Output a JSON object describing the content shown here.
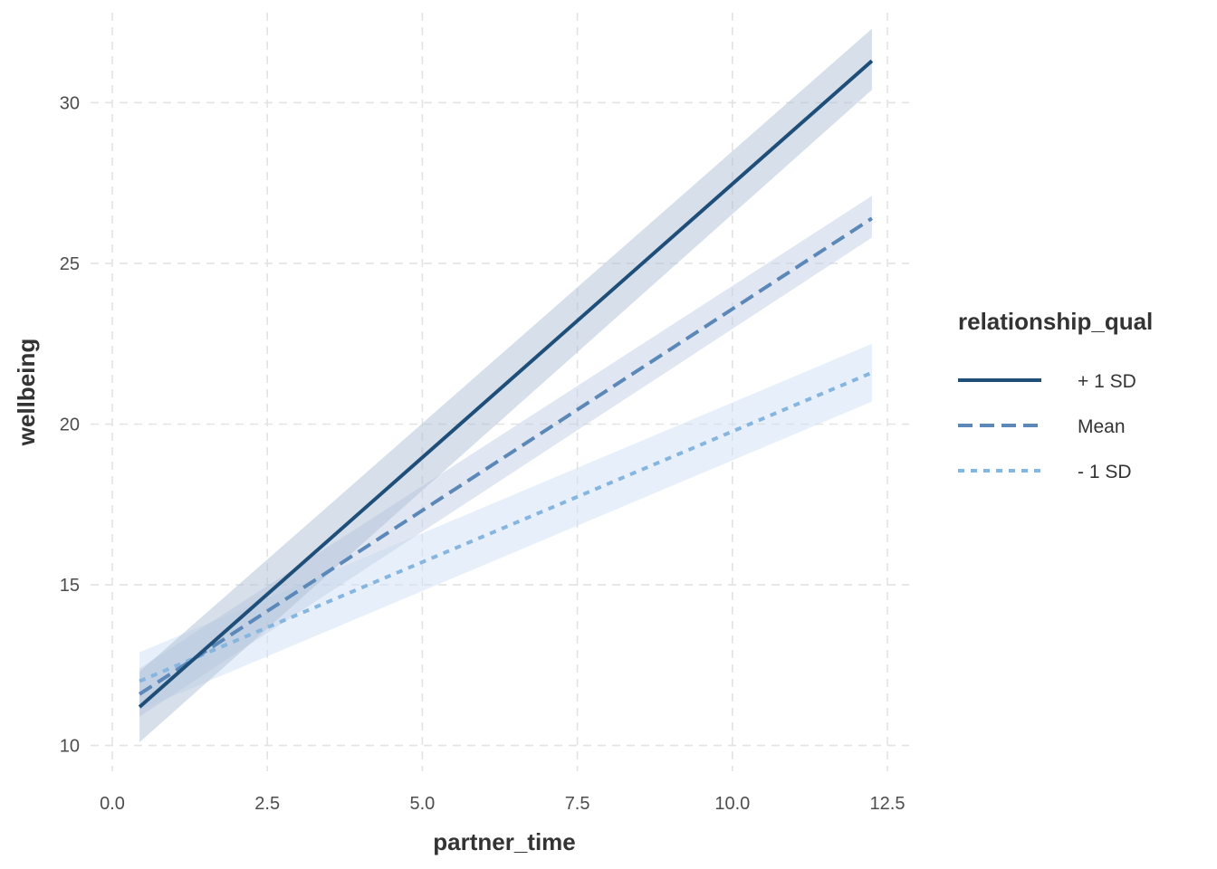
{
  "chart_data": {
    "type": "line",
    "xlabel": "partner_time",
    "ylabel": "wellbeing",
    "xlim": [
      -0.35,
      12.85
    ],
    "ylim": [
      9.2,
      32.8
    ],
    "x_ticks": [
      0.0,
      2.5,
      5.0,
      7.5,
      10.0,
      12.5
    ],
    "x_tick_labels": [
      "0.0",
      "2.5",
      "5.0",
      "7.5",
      "10.0",
      "12.5"
    ],
    "y_ticks": [
      10,
      15,
      20,
      25,
      30
    ],
    "y_tick_labels": [
      "10",
      "15",
      "20",
      "25",
      "30"
    ],
    "grid": true,
    "legend": {
      "title": "relationship_qual",
      "position": "right"
    },
    "series": [
      {
        "name": "+ 1 SD",
        "x": [
          0.44,
          12.25
        ],
        "y": [
          11.2,
          31.3
        ],
        "ci_lower": [
          10.1,
          30.4
        ],
        "ci_upper": [
          12.3,
          32.3
        ],
        "color": "#1f4e79",
        "linestyle": "solid",
        "band_color": "#aebfd6"
      },
      {
        "name": "Mean",
        "x": [
          0.44,
          12.25
        ],
        "y": [
          11.6,
          26.4
        ],
        "ci_lower": [
          10.9,
          25.8
        ],
        "ci_upper": [
          12.4,
          27.1
        ],
        "color": "#5b88b8",
        "linestyle": "dashed",
        "band_color": "#c3cfe6"
      },
      {
        "name": "- 1 SD",
        "x": [
          0.44,
          12.25
        ],
        "y": [
          12.0,
          21.6
        ],
        "ci_lower": [
          11.1,
          20.7
        ],
        "ci_upper": [
          12.9,
          22.5
        ],
        "color": "#86b5e0",
        "linestyle": "dotted",
        "band_color": "#cfe2f5"
      }
    ]
  }
}
